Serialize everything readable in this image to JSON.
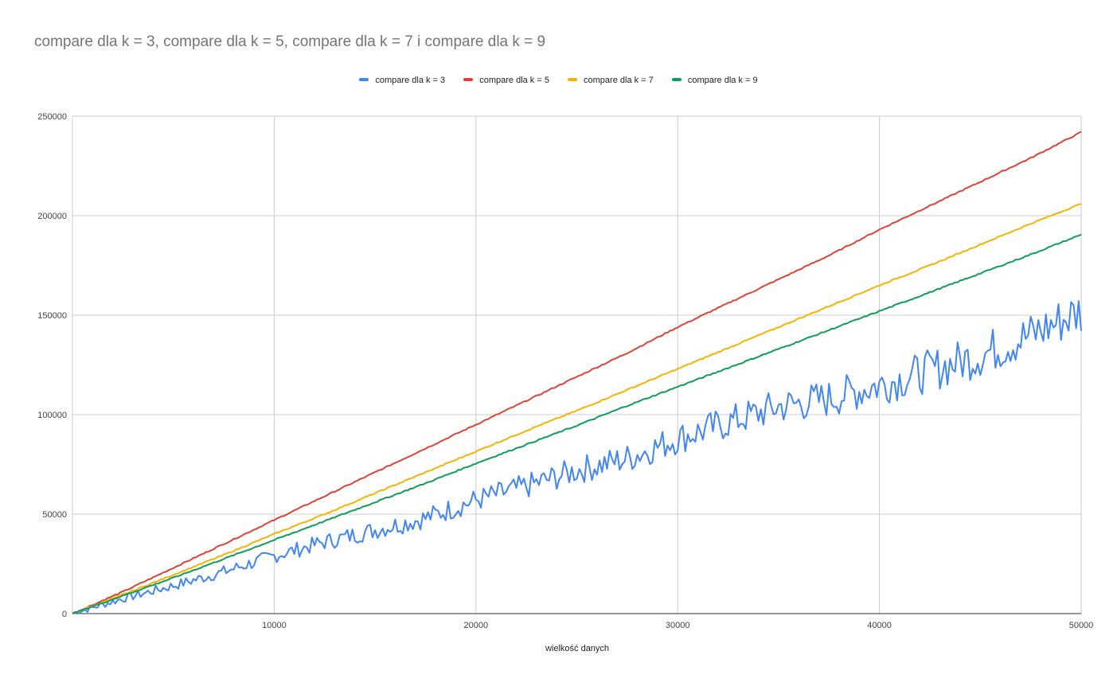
{
  "chart_data": {
    "type": "line",
    "title": "compare dla k = 3, compare dla k = 5, compare dla k = 7 i compare dla k = 9",
    "xlabel": "wielkość danych",
    "ylabel": "",
    "xlim": [
      0,
      50000
    ],
    "ylim": [
      0,
      250000
    ],
    "x_ticks": [
      "10000",
      "20000",
      "30000",
      "40000",
      "50000"
    ],
    "y_ticks": [
      "0",
      "50000",
      "100000",
      "150000",
      "200000",
      "250000"
    ],
    "grid": true,
    "legend_position": "top",
    "x": [
      0,
      2500,
      5000,
      7500,
      10000,
      12500,
      15000,
      17500,
      20000,
      22500,
      25000,
      27500,
      30000,
      32500,
      35000,
      37500,
      40000,
      42500,
      45000,
      47500,
      50000
    ],
    "series": [
      {
        "name": "compare dla k = 3",
        "color": "#4285f4",
        "values": [
          0,
          7500,
          14000,
          21000,
          29000,
          36000,
          42000,
          48000,
          57000,
          64000,
          72000,
          78000,
          88000,
          96000,
          104000,
          108000,
          115000,
          122000,
          130000,
          140000,
          152000
        ]
      },
      {
        "name": "compare dla k = 5",
        "color": "#db4437",
        "values": [
          0,
          11000,
          23000,
          35000,
          47000,
          59000,
          71000,
          83000,
          95000,
          107000,
          119000,
          131000,
          144000,
          156000,
          168000,
          180000,
          193000,
          205000,
          217000,
          229000,
          242000
        ]
      },
      {
        "name": "compare dla k = 7",
        "color": "#f4b400",
        "values": [
          0,
          9500,
          19500,
          29500,
          40000,
          50000,
          60500,
          71000,
          81500,
          92000,
          102000,
          112500,
          123000,
          133500,
          144000,
          154500,
          165000,
          175000,
          185500,
          196000,
          206000
        ]
      },
      {
        "name": "compare dla k = 9",
        "color": "#0f9d58",
        "values": [
          0,
          9000,
          18000,
          27500,
          37000,
          46500,
          56000,
          65500,
          75500,
          85000,
          94500,
          104500,
          114000,
          123500,
          133000,
          142500,
          152000,
          161500,
          171000,
          180500,
          190500
        ]
      }
    ]
  }
}
